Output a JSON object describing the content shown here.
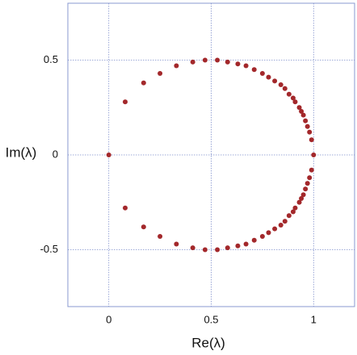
{
  "chart_data": {
    "type": "scatter",
    "xlabel": "Re(λ)",
    "ylabel": "Im(λ)",
    "x": [
      0,
      0.08,
      0.17,
      0.25,
      0.33,
      0.41,
      0.47,
      0.53,
      0.58,
      0.63,
      0.67,
      0.71,
      0.75,
      0.78,
      0.81,
      0.84,
      0.86,
      0.88,
      0.9,
      0.91,
      0.93,
      0.94,
      0.95,
      0.96,
      0.97,
      0.98,
      0.99,
      1,
      0.08,
      0.17,
      0.25,
      0.33,
      0.41,
      0.47,
      0.53,
      0.58,
      0.63,
      0.67,
      0.71,
      0.75,
      0.78,
      0.81,
      0.84,
      0.86,
      0.88,
      0.9,
      0.91,
      0.93,
      0.94,
      0.95,
      0.96,
      0.97,
      0.98,
      0.99
    ],
    "y": [
      0,
      0.28,
      0.38,
      0.43,
      0.47,
      0.49,
      0.5,
      0.5,
      0.49,
      0.48,
      0.47,
      0.45,
      0.43,
      0.41,
      0.39,
      0.37,
      0.35,
      0.32,
      0.3,
      0.28,
      0.25,
      0.23,
      0.21,
      0.18,
      0.15,
      0.12,
      0.08,
      0,
      -0.28,
      -0.38,
      -0.43,
      -0.47,
      -0.49,
      -0.5,
      -0.5,
      -0.49,
      -0.48,
      -0.47,
      -0.45,
      -0.43,
      -0.41,
      -0.39,
      -0.37,
      -0.35,
      -0.32,
      -0.3,
      -0.28,
      -0.25,
      -0.23,
      -0.21,
      -0.18,
      -0.15,
      -0.12,
      -0.08
    ],
    "color": "#a3282b",
    "xlim": [
      -0.2,
      1.2
    ],
    "ylim": [
      -0.8,
      0.8
    ],
    "xticks": [
      0,
      0.5,
      1
    ],
    "yticks": [
      -0.5,
      0,
      0.5
    ],
    "grid": true
  }
}
